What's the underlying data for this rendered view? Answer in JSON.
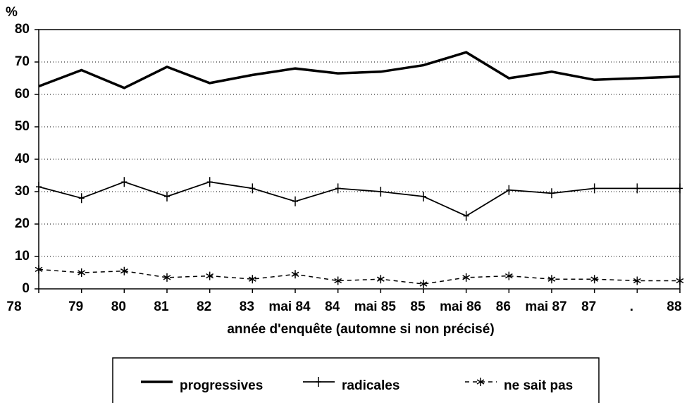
{
  "chart_data": {
    "type": "line",
    "y_unit": "%",
    "x_label": "année d'enquête (automne si non précisé)",
    "categories": [
      "78",
      "79",
      "80",
      "81",
      "82",
      "83",
      "mai 84",
      "84",
      "mai 85",
      "85",
      "mai 86",
      "86",
      "mai 87",
      "87",
      ".",
      "88"
    ],
    "series": [
      {
        "name": "progressives",
        "color": "#000000",
        "style": "thick",
        "values": [
          62.5,
          67.5,
          62,
          68.5,
          63.5,
          66,
          68,
          66.5,
          67,
          69,
          73,
          65,
          67,
          64.5,
          65,
          65.5
        ]
      },
      {
        "name": "radicales",
        "color": "#000000",
        "style": "plus",
        "values": [
          31.5,
          28,
          33,
          28.5,
          33,
          31,
          27,
          31,
          30,
          28.5,
          22.5,
          30.5,
          29.5,
          31,
          31,
          31
        ]
      },
      {
        "name": "ne sait pas",
        "color": "#000000",
        "style": "dashed-star",
        "values": [
          6,
          5,
          5.5,
          3.5,
          4,
          3,
          4.5,
          2.5,
          3,
          1.5,
          3.5,
          4,
          3,
          3,
          2.5,
          2.5
        ]
      }
    ],
    "ylim": [
      0,
      80
    ],
    "yticks": [
      0,
      10,
      20,
      30,
      40,
      50,
      60,
      70,
      80
    ],
    "grid": true
  }
}
